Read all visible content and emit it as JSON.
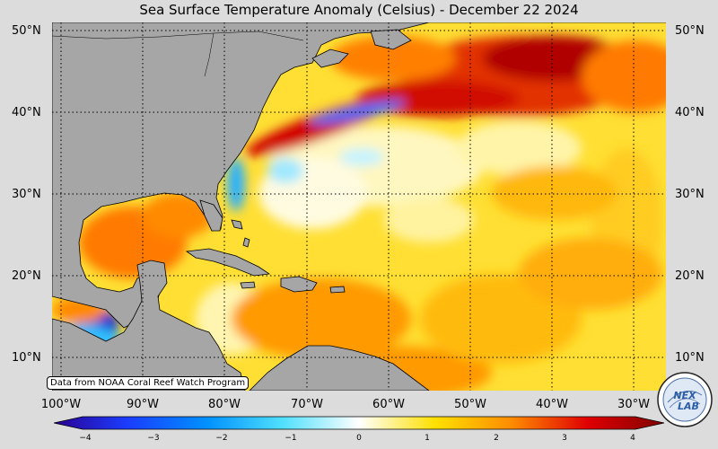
{
  "title": "Sea Surface Temperature Anomaly (Celsius) - December 22 2024",
  "credit": "Data from NOAA Coral Reef Watch Program",
  "lat_labels": [
    "50°N",
    "40°N",
    "30°N",
    "20°N",
    "10°N"
  ],
  "lon_labels": [
    "100°W",
    "90°W",
    "80°W",
    "70°W",
    "60°W",
    "50°W",
    "40°W",
    "30°W"
  ],
  "colorbar": {
    "ticks": [
      "−4",
      "−3",
      "−2",
      "−1",
      "0",
      "1",
      "2",
      "3",
      "4"
    ],
    "range": [
      -4,
      4
    ]
  },
  "logo_text": "NEX LAB",
  "colors": {
    "land": "#a6a6a6",
    "cold_strong": "#2a0fa0",
    "cool": "#00b8ff",
    "neutral": "#ffffff",
    "warm": "#ffe000",
    "hot": "#e00000",
    "hot_strong": "#8a0000"
  }
}
